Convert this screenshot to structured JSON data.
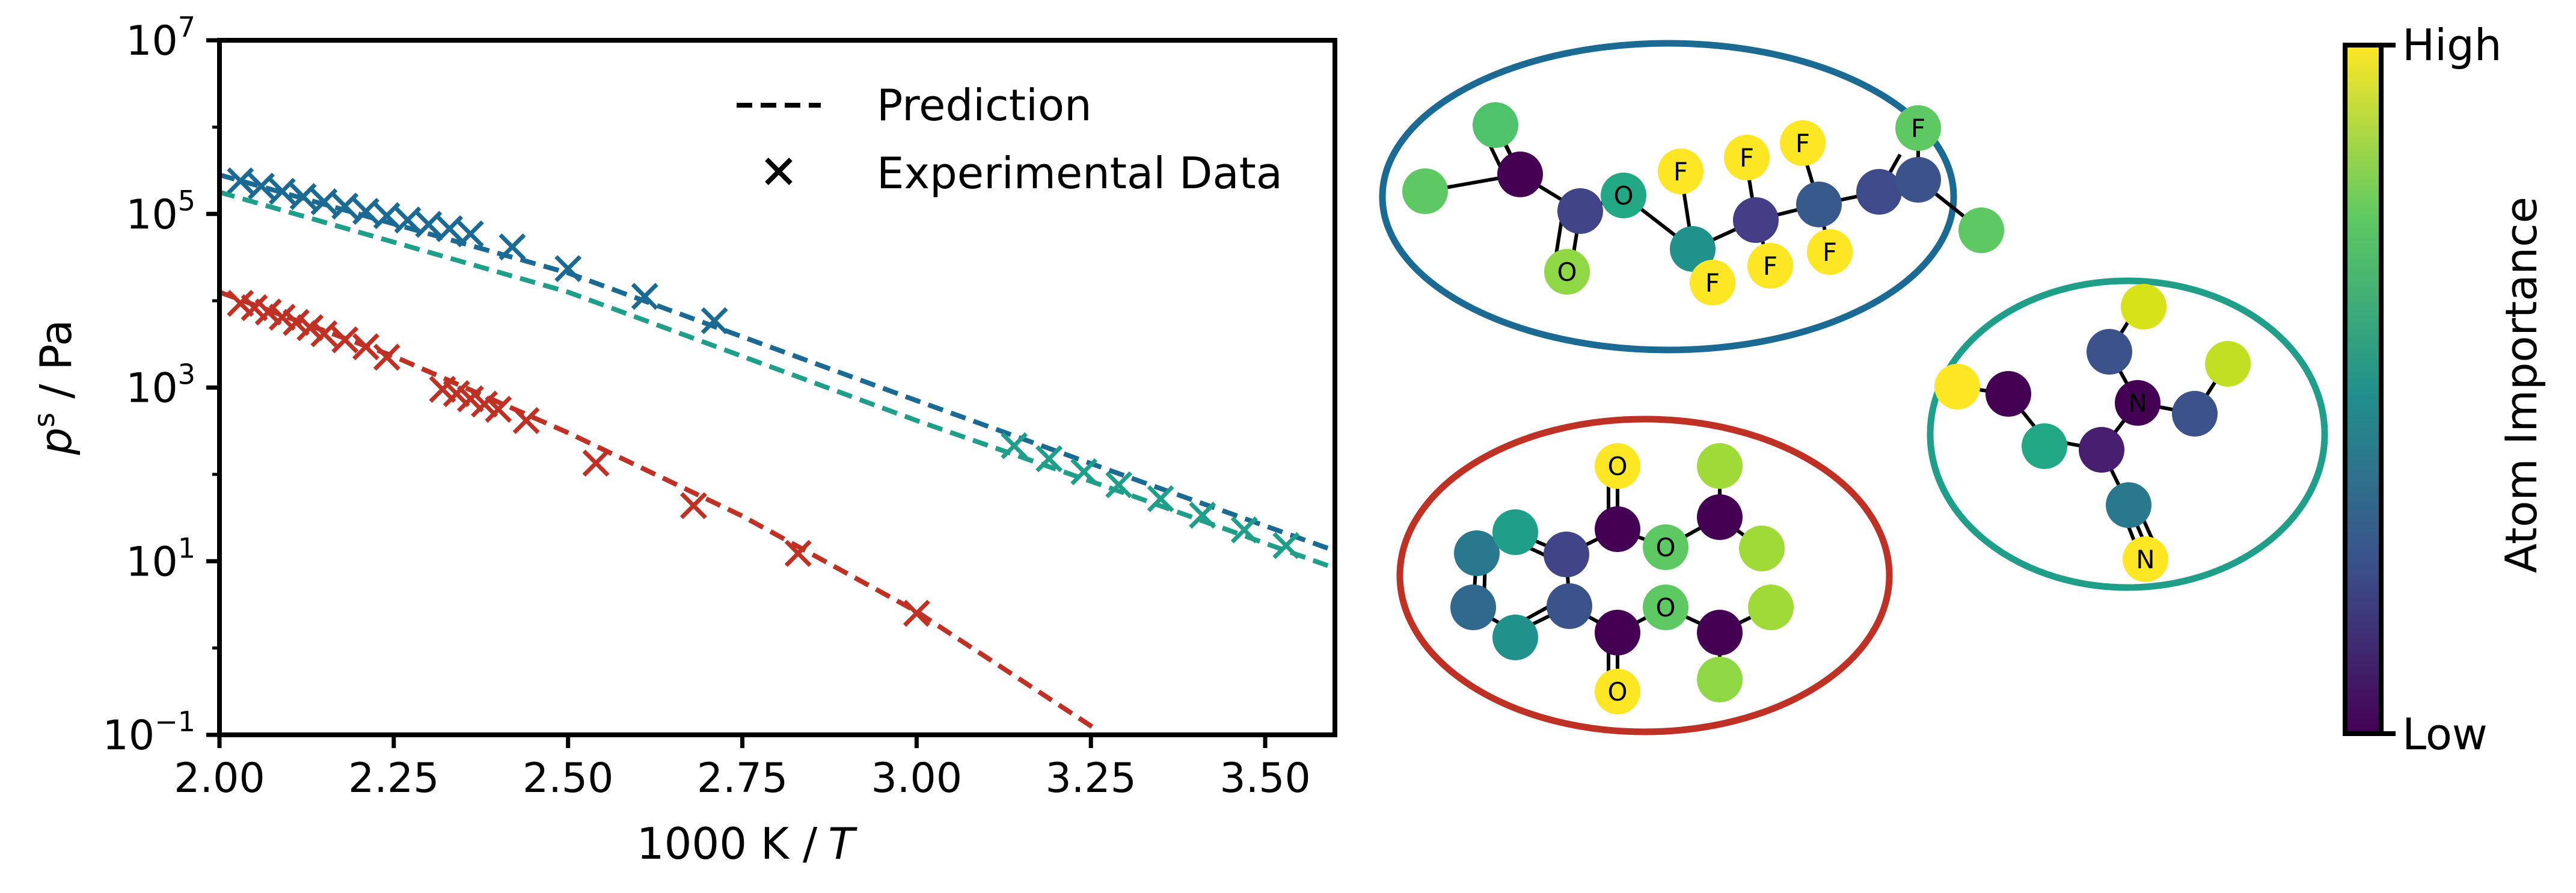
{
  "colors": {
    "blue": "#1a6a94",
    "teal": "#1f9e89",
    "red": "#bf3124",
    "axis": "#000000"
  },
  "chart_data": {
    "type": "line",
    "title": "",
    "xlabel_main": "1000 K /",
    "xlabel_var": "T",
    "ylabel_var": "p",
    "ylabel_sup": "s",
    "ylabel_unit": " / Pa",
    "xlim": [
      2.0,
      3.6
    ],
    "ylim_log10": [
      -1,
      7
    ],
    "x_ticks": [
      2.0,
      2.25,
      2.5,
      2.75,
      3.0,
      3.25,
      3.5
    ],
    "x_tick_labels": [
      "2.00",
      "2.25",
      "2.50",
      "2.75",
      "3.00",
      "3.25",
      "3.50"
    ],
    "y_ticks_log10": [
      -1,
      1,
      3,
      5,
      7
    ],
    "y_tick_base": "10",
    "y_tick_exponents": [
      "−1",
      "1",
      "3",
      "5",
      "7"
    ],
    "legend": {
      "position": "upper-center",
      "entries": [
        {
          "label": "Prediction",
          "marker": "dashed-line"
        },
        {
          "label": "Experimental Data",
          "marker": "x"
        }
      ]
    },
    "series": [
      {
        "name": "blue molecule",
        "color_key": "blue",
        "prediction_log10": [
          [
            2.0,
            5.45
          ],
          [
            2.5,
            4.32
          ],
          [
            3.0,
            2.85
          ],
          [
            3.3,
            1.98
          ],
          [
            3.6,
            1.12
          ]
        ],
        "experimental_log10": [
          [
            2.03,
            5.38
          ],
          [
            2.06,
            5.32
          ],
          [
            2.09,
            5.26
          ],
          [
            2.12,
            5.2
          ],
          [
            2.15,
            5.14
          ],
          [
            2.18,
            5.09
          ],
          [
            2.21,
            5.03
          ],
          [
            2.24,
            4.98
          ],
          [
            2.27,
            4.93
          ],
          [
            2.3,
            4.88
          ],
          [
            2.33,
            4.83
          ],
          [
            2.36,
            4.77
          ],
          [
            2.42,
            4.62
          ],
          [
            2.5,
            4.37
          ],
          [
            2.61,
            4.05
          ],
          [
            2.71,
            3.77
          ]
        ]
      },
      {
        "name": "teal molecule",
        "color_key": "teal",
        "prediction_log10": [
          [
            2.0,
            5.25
          ],
          [
            2.5,
            4.1
          ],
          [
            3.0,
            2.62
          ],
          [
            3.3,
            1.78
          ],
          [
            3.6,
            0.92
          ]
        ],
        "experimental_log10": [
          [
            3.14,
            2.33
          ],
          [
            3.19,
            2.18
          ],
          [
            3.24,
            2.03
          ],
          [
            3.29,
            1.88
          ],
          [
            3.35,
            1.72
          ],
          [
            3.41,
            1.53
          ],
          [
            3.47,
            1.36
          ],
          [
            3.53,
            1.18
          ]
        ]
      },
      {
        "name": "red molecule",
        "color_key": "red",
        "prediction_log10": [
          [
            2.0,
            4.1
          ],
          [
            2.25,
            3.36
          ],
          [
            2.5,
            2.48
          ],
          [
            2.75,
            1.52
          ],
          [
            3.0,
            0.42
          ],
          [
            3.26,
            -0.95
          ]
        ],
        "experimental_log10": [
          [
            2.03,
            3.97
          ],
          [
            2.05,
            3.92
          ],
          [
            2.07,
            3.87
          ],
          [
            2.09,
            3.81
          ],
          [
            2.11,
            3.75
          ],
          [
            2.13,
            3.69
          ],
          [
            2.15,
            3.62
          ],
          [
            2.18,
            3.55
          ],
          [
            2.21,
            3.47
          ],
          [
            2.24,
            3.35
          ],
          [
            2.32,
            2.98
          ],
          [
            2.34,
            2.93
          ],
          [
            2.36,
            2.87
          ],
          [
            2.38,
            2.81
          ],
          [
            2.4,
            2.75
          ],
          [
            2.44,
            2.62
          ],
          [
            2.54,
            2.13
          ],
          [
            2.68,
            1.64
          ],
          [
            2.83,
            1.09
          ],
          [
            3.0,
            0.4
          ]
        ]
      }
    ]
  },
  "molecules": {
    "ellipse_blue": {
      "atom_labels": [
        "F",
        "F",
        "F",
        "F",
        "F",
        "F",
        "F",
        "O",
        "O"
      ],
      "border_color_key": "blue"
    },
    "ellipse_teal": {
      "atom_labels": [
        "N",
        "N"
      ],
      "border_color_key": "teal"
    },
    "ellipse_red": {
      "atom_labels": [
        "O",
        "O",
        "O",
        "O"
      ],
      "border_color_key": "red"
    }
  },
  "colorbar": {
    "label": "Atom Importance",
    "high_label": "High",
    "low_label": "Low",
    "colormap": "viridis",
    "stops": [
      "#440154",
      "#3b528b",
      "#21918c",
      "#5ec962",
      "#fde725"
    ]
  }
}
